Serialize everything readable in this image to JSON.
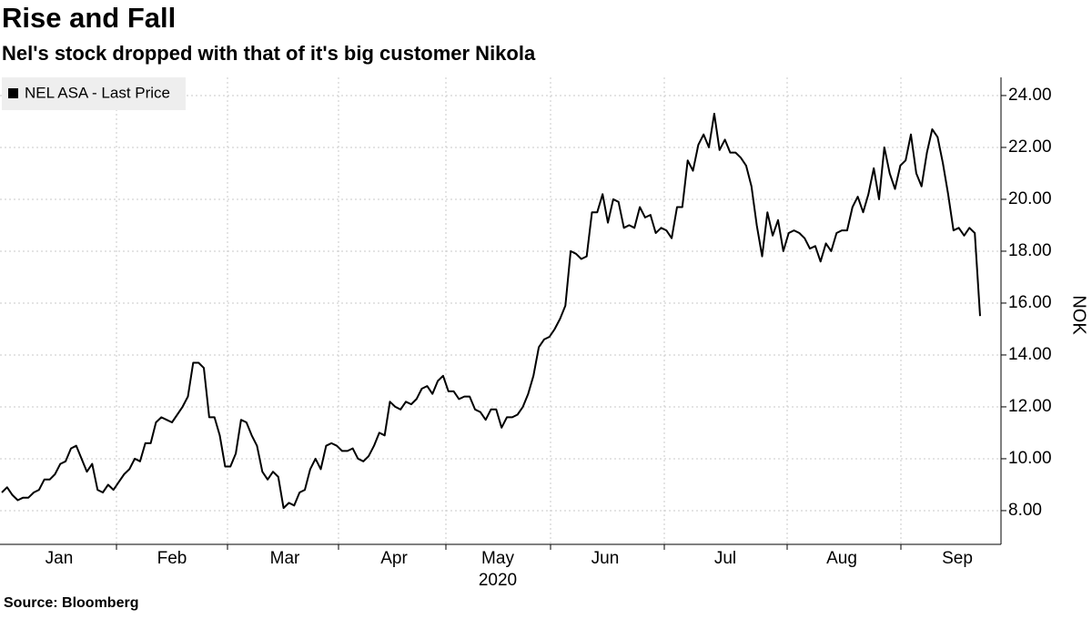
{
  "chart_data": {
    "type": "line",
    "title": "Rise and Fall",
    "subtitle": "Nel's stock dropped with that of it's big customer Nikola",
    "source": "Source: Bloomberg",
    "y_axis_label": "NOK",
    "x_labels": [
      "Jan",
      "Feb",
      "Mar",
      "Apr",
      "May",
      "Jun",
      "Jul",
      "Aug",
      "Sep"
    ],
    "x_sublabel": "2020",
    "ylim": [
      6.7,
      24.7
    ],
    "yticks": [
      {
        "value": 8,
        "label": "8.00"
      },
      {
        "value": 10,
        "label": "10.00"
      },
      {
        "value": 12,
        "label": "12.00"
      },
      {
        "value": 14,
        "label": "14.00"
      },
      {
        "value": 16,
        "label": "16.00"
      },
      {
        "value": 18,
        "label": "18.00"
      },
      {
        "value": 20,
        "label": "20.00"
      },
      {
        "value": 22,
        "label": "22.00"
      },
      {
        "value": 24,
        "label": "24.00"
      }
    ],
    "grid": true,
    "legend_position": "upper left",
    "series": [
      {
        "name": "NEL ASA - Last Price",
        "color": "#000000",
        "values": [
          8.7,
          8.9,
          8.6,
          8.4,
          8.5,
          8.5,
          8.7,
          8.8,
          9.2,
          9.2,
          9.4,
          9.8,
          9.9,
          10.4,
          10.5,
          10.0,
          9.5,
          9.8,
          8.8,
          8.7,
          9.0,
          8.8,
          9.1,
          9.4,
          9.6,
          10.0,
          9.9,
          10.6,
          10.6,
          11.4,
          11.6,
          11.5,
          11.4,
          11.7,
          12.0,
          12.4,
          13.7,
          13.7,
          13.5,
          11.6,
          11.6,
          10.9,
          9.7,
          9.7,
          10.2,
          11.5,
          11.4,
          10.9,
          10.5,
          9.5,
          9.2,
          9.5,
          9.3,
          8.1,
          8.3,
          8.2,
          8.7,
          8.8,
          9.6,
          10.0,
          9.6,
          10.5,
          10.6,
          10.5,
          10.3,
          10.3,
          10.4,
          10.0,
          9.9,
          10.1,
          10.5,
          11.0,
          10.9,
          12.2,
          12.0,
          11.9,
          12.2,
          12.1,
          12.3,
          12.7,
          12.8,
          12.5,
          13.0,
          13.2,
          12.6,
          12.6,
          12.3,
          12.4,
          12.4,
          11.9,
          11.8,
          11.5,
          11.9,
          11.9,
          11.2,
          11.6,
          11.6,
          11.7,
          12.0,
          12.5,
          13.2,
          14.3,
          14.6,
          14.7,
          15.0,
          15.4,
          15.9,
          18.0,
          17.9,
          17.7,
          17.8,
          19.5,
          19.5,
          20.2,
          19.1,
          20.0,
          19.9,
          18.9,
          19.0,
          18.9,
          19.7,
          19.3,
          19.4,
          18.7,
          18.9,
          18.8,
          18.5,
          19.7,
          19.7,
          21.5,
          21.1,
          22.1,
          22.5,
          22.0,
          23.3,
          21.9,
          22.3,
          21.8,
          21.8,
          21.6,
          21.3,
          20.5,
          19.0,
          17.8,
          19.5,
          18.6,
          19.2,
          18.0,
          18.7,
          18.8,
          18.7,
          18.5,
          18.1,
          18.2,
          17.6,
          18.3,
          18.0,
          18.7,
          18.8,
          18.8,
          19.7,
          20.1,
          19.5,
          20.2,
          21.2,
          20.0,
          22.0,
          21.0,
          20.4,
          21.3,
          21.5,
          22.5,
          21.0,
          20.5,
          21.8,
          22.7,
          22.4,
          21.4,
          20.2,
          18.8,
          18.9,
          18.6,
          18.9,
          18.7,
          15.5
        ]
      }
    ]
  }
}
